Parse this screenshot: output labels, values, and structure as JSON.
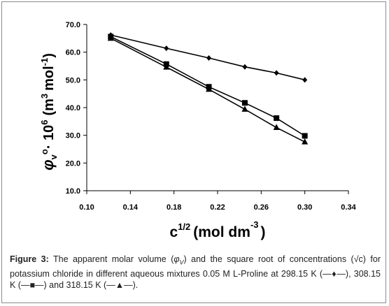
{
  "chart_data": {
    "type": "line",
    "ylabel": "φv°·10⁶ (m³ mol⁻¹)",
    "ylabel_parts": {
      "sym": "φ",
      "sub": "v",
      "deg": "o",
      "times": "· 10",
      "exp": "6",
      "unit_open": "(m",
      "unit_exp": "3",
      "unit_mid": "mol",
      "unit_neg": "-1",
      "unit_close": ")"
    },
    "xlabel": "c^1/2 (mol dm^-3)",
    "xlabel_parts": {
      "base": "c",
      "pow": "1/2",
      "unit": "(mol dm",
      "unit_exp": "-3",
      "unit_close": ")"
    },
    "xlim": [
      0.1,
      0.34
    ],
    "ylim": [
      10.0,
      70.0
    ],
    "x_ticks": [
      "0.10",
      "0.14",
      "0.18",
      "0.22",
      "0.26",
      "0.30",
      "0.34"
    ],
    "y_ticks": [
      "10.0",
      "20.0",
      "30.0",
      "40.0",
      "50.0",
      "60.0",
      "70.0"
    ],
    "grid": false,
    "legend": "none",
    "series": [
      {
        "temperature": "298.15 K",
        "marker": "diamond",
        "color": "#000000",
        "points": [
          [
            0.122,
            66.2
          ],
          [
            0.173,
            61.4
          ],
          [
            0.212,
            57.9
          ],
          [
            0.245,
            54.7
          ],
          [
            0.274,
            52.5
          ],
          [
            0.3,
            50.0
          ]
        ]
      },
      {
        "temperature": "308.15 K",
        "marker": "square",
        "color": "#000000",
        "points": [
          [
            0.122,
            65.6
          ],
          [
            0.173,
            55.7
          ],
          [
            0.212,
            47.5
          ],
          [
            0.245,
            41.7
          ],
          [
            0.274,
            36.2
          ],
          [
            0.3,
            29.8
          ]
        ]
      },
      {
        "temperature": "318.15 K",
        "marker": "triangle",
        "color": "#000000",
        "points": [
          [
            0.122,
            65.0
          ],
          [
            0.173,
            54.6
          ],
          [
            0.212,
            46.6
          ],
          [
            0.245,
            39.4
          ],
          [
            0.274,
            32.8
          ],
          [
            0.3,
            27.6
          ]
        ]
      }
    ]
  },
  "caption": {
    "label": "Figure 3:",
    "text_1": " The apparent molar volume (",
    "phi": "φ",
    "phi_sub": "V",
    "text_2": ") and the square root of concentrations (√c) for potassium chloride in different aqueous mixtures 0.05 M L-Proline at 298.15 K (",
    "legend_1": "—♦—",
    "text_3": "), 308.15 K (",
    "legend_2": "—■—",
    "text_4": ") and 318.15 K (",
    "legend_3": "—▲—",
    "text_5": ")."
  }
}
